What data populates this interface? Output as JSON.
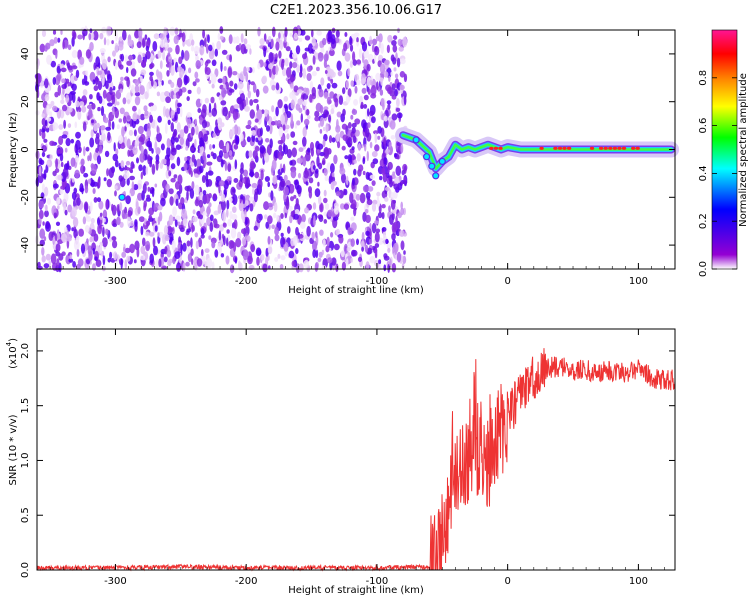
{
  "title": "C2E1.2023.356.10.06.G17",
  "chart_data": [
    {
      "type": "heatmap",
      "xlabel": "Height of straight line (km)",
      "ylabel": "Frequency (Hz)",
      "xlim": [
        -360,
        128
      ],
      "ylim": [
        -50,
        50
      ],
      "xticks": [
        -300,
        -200,
        -100,
        0,
        100
      ],
      "yticks": [
        -40,
        -20,
        0,
        20,
        40
      ],
      "noise_region_x": [
        -360,
        -78
      ],
      "signal_track": {
        "x": [
          -80,
          -70,
          -60,
          -55,
          -50,
          -45,
          -40,
          -35,
          -30,
          -25,
          -20,
          -15,
          -10,
          -5,
          0,
          10,
          20,
          40,
          60,
          80,
          100,
          125
        ],
        "y": [
          6,
          4,
          -1,
          -8,
          -5,
          -3,
          2,
          0,
          1,
          0,
          1,
          2,
          1,
          0,
          1,
          0,
          0,
          0,
          0,
          0,
          0,
          0
        ]
      },
      "colorbar": {
        "label": "Normalized spectral amplitude",
        "range": [
          0,
          1
        ],
        "ticks": [
          "0.0",
          "0.2",
          "0.4",
          "0.6",
          "0.8"
        ],
        "colors": [
          "#ffffff",
          "#9400d3",
          "#0000ff",
          "#00ffff",
          "#00ff00",
          "#ffff00",
          "#ff8000",
          "#ff0000",
          "#ff1493"
        ]
      }
    },
    {
      "type": "line",
      "xlabel": "Height of straight line (km)",
      "ylabel": "SNR (10 * v/v)",
      "scale_label": "(x10",
      "scale_exp": "4",
      "scale_close": ")",
      "xlim": [
        -360,
        128
      ],
      "ylim": [
        0,
        2.2
      ],
      "xticks": [
        -300,
        -200,
        -100,
        0,
        100
      ],
      "yticks": [
        "0.0",
        "0.5",
        "1.0",
        "1.5",
        "2.0"
      ],
      "color": "#ee3333",
      "series": [
        {
          "x": [
            -360,
            -300,
            -250,
            -200,
            -150,
            -100,
            -60,
            -55,
            -50,
            -45,
            -40,
            -35,
            -30,
            -25,
            -20,
            -15,
            -10,
            -5,
            0,
            10,
            20,
            30,
            40,
            50,
            60,
            70,
            80,
            90,
            100,
            110,
            128
          ],
          "y": [
            0.02,
            0.02,
            0.03,
            0.02,
            0.02,
            0.02,
            0.03,
            0.1,
            0.3,
            0.6,
            0.9,
            1.0,
            1.0,
            1.1,
            1.1,
            1.0,
            1.1,
            1.3,
            1.4,
            1.6,
            1.75,
            1.85,
            1.85,
            1.83,
            1.82,
            1.8,
            1.82,
            1.8,
            1.85,
            1.75,
            1.73
          ]
        }
      ]
    }
  ]
}
